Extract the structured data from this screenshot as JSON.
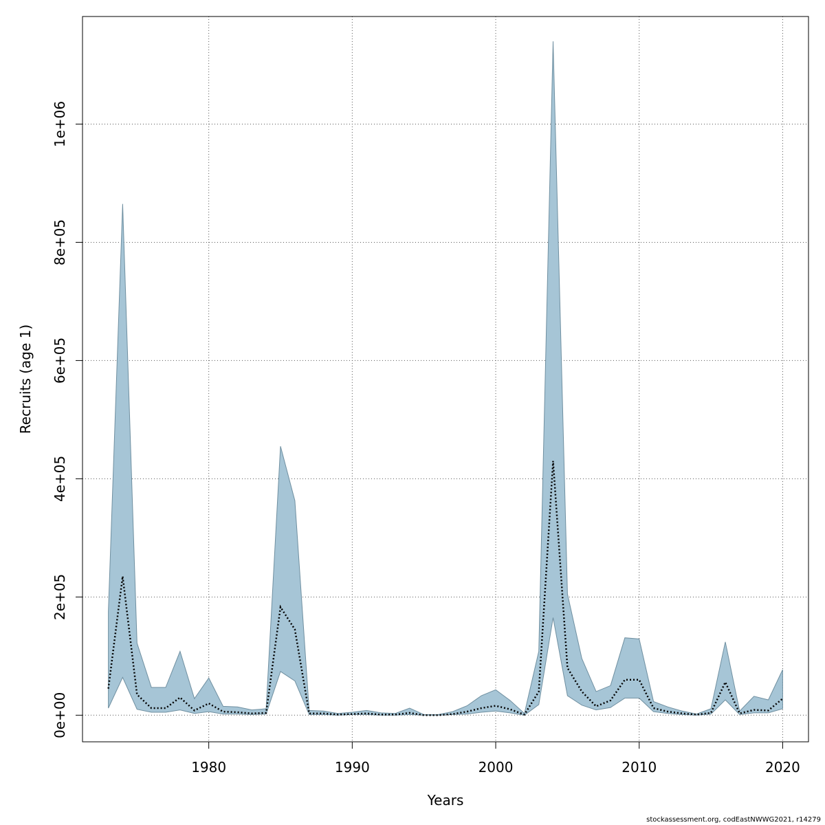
{
  "chart_data": {
    "type": "area",
    "xlabel": "Years",
    "ylabel": "Recruits (age 1)",
    "xlim": [
      1971.2,
      2021.8
    ],
    "ylim": [
      -45000,
      1182000
    ],
    "x_ticks": [
      1980,
      1990,
      2000,
      2010,
      2020
    ],
    "x_tick_labels": [
      "1980",
      "1990",
      "2000",
      "2010",
      "2020"
    ],
    "y_ticks": [
      0,
      200000,
      400000,
      600000,
      800000,
      1000000
    ],
    "y_tick_labels": [
      "0e+00",
      "2e+05",
      "4e+05",
      "6e+05",
      "8e+05",
      "1e+06"
    ],
    "grid": true,
    "colors": {
      "band_fill": "#a6c5d6",
      "band_stroke": "#6f8fa0",
      "estimate_line": "#000000",
      "grid": "#555555"
    },
    "x": [
      1973,
      1974,
      1975,
      1976,
      1977,
      1978,
      1979,
      1980,
      1981,
      1982,
      1983,
      1984,
      1985,
      1986,
      1987,
      1988,
      1989,
      1990,
      1991,
      1992,
      1993,
      1994,
      1995,
      1996,
      1997,
      1998,
      1999,
      2000,
      2001,
      2002,
      2003,
      2004,
      2005,
      2006,
      2007,
      2008,
      2009,
      2010,
      2011,
      2012,
      2013,
      2014,
      2015,
      2016,
      2017,
      2018,
      2019,
      2020
    ],
    "series": [
      {
        "name": "Recruits estimate",
        "values": [
          45000,
          235000,
          35000,
          12000,
          12000,
          30000,
          8000,
          20000,
          6000,
          5000,
          3000,
          4000,
          183000,
          145000,
          3000,
          3000,
          1000,
          2000,
          3000,
          1000,
          1000,
          4000,
          0,
          0,
          2000,
          6000,
          12000,
          16000,
          10000,
          1000,
          40000,
          430000,
          80000,
          40000,
          15000,
          25000,
          60000,
          60000,
          12000,
          6000,
          3000,
          1000,
          4000,
          56000,
          3000,
          9000,
          8000,
          28000
        ]
      },
      {
        "name": "Lower bound",
        "values": [
          12000,
          64000,
          10000,
          5000,
          5000,
          9000,
          3000,
          6000,
          2000,
          2000,
          1000,
          2000,
          74000,
          58000,
          1000,
          1000,
          0,
          1000,
          1000,
          0,
          0,
          1000,
          0,
          0,
          1000,
          2000,
          5000,
          7000,
          4000,
          0,
          18000,
          165000,
          33000,
          17000,
          9000,
          13000,
          29000,
          29000,
          6000,
          3000,
          1000,
          0,
          2000,
          26000,
          1000,
          4000,
          4000,
          11000
        ]
      },
      {
        "name": "Upper bound",
        "values": [
          175000,
          865000,
          122000,
          47000,
          47000,
          108000,
          28000,
          63000,
          15000,
          14000,
          9000,
          11000,
          455000,
          363000,
          8000,
          7000,
          3000,
          5000,
          8000,
          4000,
          3000,
          12000,
          1000,
          1000,
          6000,
          16000,
          33000,
          43000,
          25000,
          3000,
          108000,
          1140000,
          205000,
          96000,
          40000,
          50000,
          131000,
          129000,
          23000,
          14000,
          7000,
          2000,
          11000,
          124000,
          7000,
          32000,
          26000,
          77000
        ]
      }
    ]
  },
  "footer": {
    "credit": "stockassessment.org, codEastNWWG2021, r14279"
  }
}
